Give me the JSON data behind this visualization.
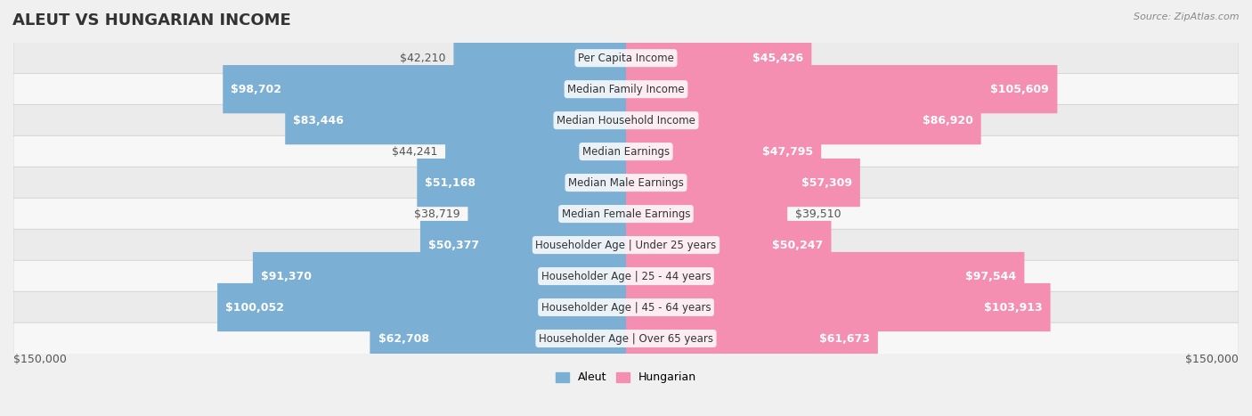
{
  "title": "ALEUT VS HUNGARIAN INCOME",
  "source": "Source: ZipAtlas.com",
  "categories": [
    "Per Capita Income",
    "Median Family Income",
    "Median Household Income",
    "Median Earnings",
    "Median Male Earnings",
    "Median Female Earnings",
    "Householder Age | Under 25 years",
    "Householder Age | 25 - 44 years",
    "Householder Age | 45 - 64 years",
    "Householder Age | Over 65 years"
  ],
  "aleut_values": [
    42210,
    98702,
    83446,
    44241,
    51168,
    38719,
    50377,
    91370,
    100052,
    62708
  ],
  "hungarian_values": [
    45426,
    105609,
    86920,
    47795,
    57309,
    39510,
    50247,
    97544,
    103913,
    61673
  ],
  "aleut_labels": [
    "$42,210",
    "$98,702",
    "$83,446",
    "$44,241",
    "$51,168",
    "$38,719",
    "$50,377",
    "$91,370",
    "$100,052",
    "$62,708"
  ],
  "hungarian_labels": [
    "$45,426",
    "$105,609",
    "$86,920",
    "$47,795",
    "$57,309",
    "$39,510",
    "$50,247",
    "$97,544",
    "$103,913",
    "$61,673"
  ],
  "aleut_color": "#7BAFD4",
  "aleut_color_dark": "#5B8DB8",
  "hungarian_color": "#F48FB1",
  "hungarian_color_dark": "#E05A8A",
  "max_value": 150000,
  "bg_color": "#f5f5f5",
  "row_bg_light": "#f9f9f9",
  "row_bg_dark": "#eeeeee",
  "label_fontsize": 9,
  "title_fontsize": 13,
  "category_fontsize": 8.5
}
